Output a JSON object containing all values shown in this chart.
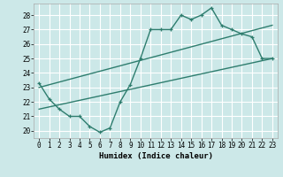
{
  "xlabel": "Humidex (Indice chaleur)",
  "background_color": "#cce8e8",
  "grid_color": "#ffffff",
  "line_color": "#2e7d6e",
  "xlim": [
    -0.5,
    23.5
  ],
  "ylim": [
    19.5,
    28.8
  ],
  "xticks": [
    0,
    1,
    2,
    3,
    4,
    5,
    6,
    7,
    8,
    9,
    10,
    11,
    12,
    13,
    14,
    15,
    16,
    17,
    18,
    19,
    20,
    21,
    22,
    23
  ],
  "yticks": [
    20,
    21,
    22,
    23,
    24,
    25,
    26,
    27,
    28
  ],
  "line1_x": [
    0,
    1,
    2,
    3,
    4,
    5,
    6,
    7,
    8,
    9,
    10,
    11,
    12,
    13,
    14,
    15,
    16,
    17,
    18,
    19,
    20,
    21,
    22,
    23
  ],
  "line1_y": [
    23.3,
    22.2,
    21.5,
    21.0,
    21.0,
    20.3,
    19.9,
    20.2,
    22.0,
    23.2,
    25.0,
    27.0,
    27.0,
    27.0,
    28.0,
    27.7,
    28.0,
    28.5,
    27.3,
    27.0,
    26.7,
    26.5,
    25.0,
    25.0
  ],
  "line2_x": [
    0,
    23
  ],
  "line2_y": [
    21.5,
    25.0
  ],
  "line3_x": [
    0,
    23
  ],
  "line3_y": [
    23.0,
    27.3
  ],
  "xlabel_fontsize": 6.5,
  "tick_fontsize": 5.5
}
